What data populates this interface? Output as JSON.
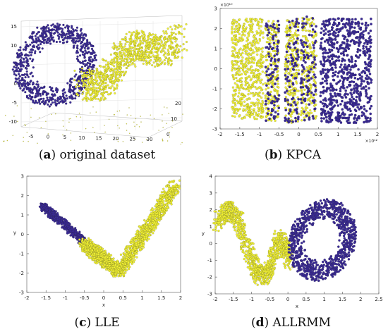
{
  "colors": {
    "purple": "#3a2a96",
    "yellow": "#f2f233"
  },
  "captions": {
    "a": {
      "letter": "a",
      "text": "original dataset"
    },
    "b": {
      "letter": "b",
      "text": "KPCA"
    },
    "c": {
      "letter": "c",
      "text": "LLE"
    },
    "d": {
      "letter": "d",
      "text": "ALLRMM"
    }
  },
  "chart_data": [
    {
      "id": "a",
      "type": "scatter",
      "title": "",
      "xlabel": "",
      "ylabel": "",
      "z_ticks": [
        "-10",
        "-5",
        "0",
        "5",
        "10",
        "15"
      ],
      "x_ticks": [
        "-5",
        "0",
        "5",
        "10",
        "15",
        "20",
        "25",
        "30"
      ],
      "y_ticks": [
        "0",
        "10",
        "20"
      ],
      "grid": true,
      "series": [
        {
          "color": "#3a2a96",
          "description": "swiss-roll outer ring"
        },
        {
          "color": "#f2f233",
          "description": "swiss-roll inner tail"
        }
      ]
    },
    {
      "id": "b",
      "type": "scatter",
      "title": "",
      "xlabel": "",
      "ylabel": "",
      "x_exponent": "×10¹²",
      "y_exponent": "×10¹⁰",
      "xlim": [
        -2,
        2
      ],
      "ylim": [
        -3,
        3
      ],
      "x_ticks": [
        "-2",
        "-1.5",
        "-1",
        "-0.5",
        "0",
        "0.5",
        "1",
        "1.5",
        "2"
      ],
      "y_ticks": [
        "-3",
        "-2",
        "-1",
        "0",
        "1",
        "2",
        "3"
      ],
      "bands": [
        {
          "x": [
            -1.7,
            -0.9
          ],
          "y": [
            -2.5,
            2.5
          ],
          "color": "yellow"
        },
        {
          "x": [
            -0.85,
            -0.5
          ],
          "y": [
            -2.6,
            2.4
          ],
          "color": "mixed"
        },
        {
          "x": [
            -0.35,
            0.0
          ],
          "y": [
            -2.7,
            2.5
          ],
          "color": "mixed"
        },
        {
          "x": [
            0.05,
            0.45
          ],
          "y": [
            -2.6,
            2.6
          ],
          "color": "mixed"
        },
        {
          "x": [
            0.55,
            1.85
          ],
          "y": [
            -2.7,
            2.5
          ],
          "color": "purple"
        }
      ]
    },
    {
      "id": "c",
      "type": "scatter",
      "title": "",
      "xlabel": "x",
      "ylabel": "y",
      "xlim": [
        -2,
        2
      ],
      "ylim": [
        -3,
        3
      ],
      "x_ticks": [
        "-2",
        "-1.5",
        "-1",
        "-0.5",
        "0",
        "0.5",
        "1",
        "1.5",
        "2"
      ],
      "y_ticks": [
        "-3",
        "-2",
        "-1",
        "0",
        "1",
        "2",
        "3"
      ],
      "segments": [
        {
          "from": [
            -1.6,
            1.5
          ],
          "to": [
            -0.45,
            -0.5
          ],
          "color": "purple",
          "width": 0.18
        },
        {
          "from": [
            -0.5,
            -0.5
          ],
          "to": [
            0.4,
            -1.9
          ],
          "color": "yellow",
          "width": 0.3
        },
        {
          "from": [
            0.4,
            -1.9
          ],
          "to": [
            1.85,
            2.5
          ],
          "color": "yellow",
          "width": 0.3
        }
      ]
    },
    {
      "id": "d",
      "type": "scatter",
      "title": "",
      "xlabel": "x",
      "ylabel": "y",
      "xlim": [
        -2,
        2.5
      ],
      "ylim": [
        -3,
        4
      ],
      "x_ticks": [
        "-2",
        "-1.5",
        "-1",
        "-0.5",
        "0",
        "0.5",
        "1",
        "1.5",
        "2",
        "2.5"
      ],
      "y_ticks": [
        "-3",
        "-2",
        "-1",
        "0",
        "1",
        "2",
        "3",
        "4"
      ],
      "yellow_wave": [
        [
          -1.95,
          1.2
        ],
        [
          -1.75,
          1.8
        ],
        [
          -1.55,
          2.0
        ],
        [
          -1.35,
          1.3
        ],
        [
          -1.15,
          0.0
        ],
        [
          -0.95,
          -1.3
        ],
        [
          -0.75,
          -2.0
        ],
        [
          -0.55,
          -1.7
        ],
        [
          -0.4,
          -0.7
        ],
        [
          -0.25,
          0.3
        ],
        [
          -0.1,
          -0.2
        ],
        [
          0.05,
          -1.0
        ]
      ],
      "purple_ring": {
        "center": [
          0.95,
          0.2
        ],
        "rx": 0.95,
        "ry": 2.4
      }
    }
  ]
}
